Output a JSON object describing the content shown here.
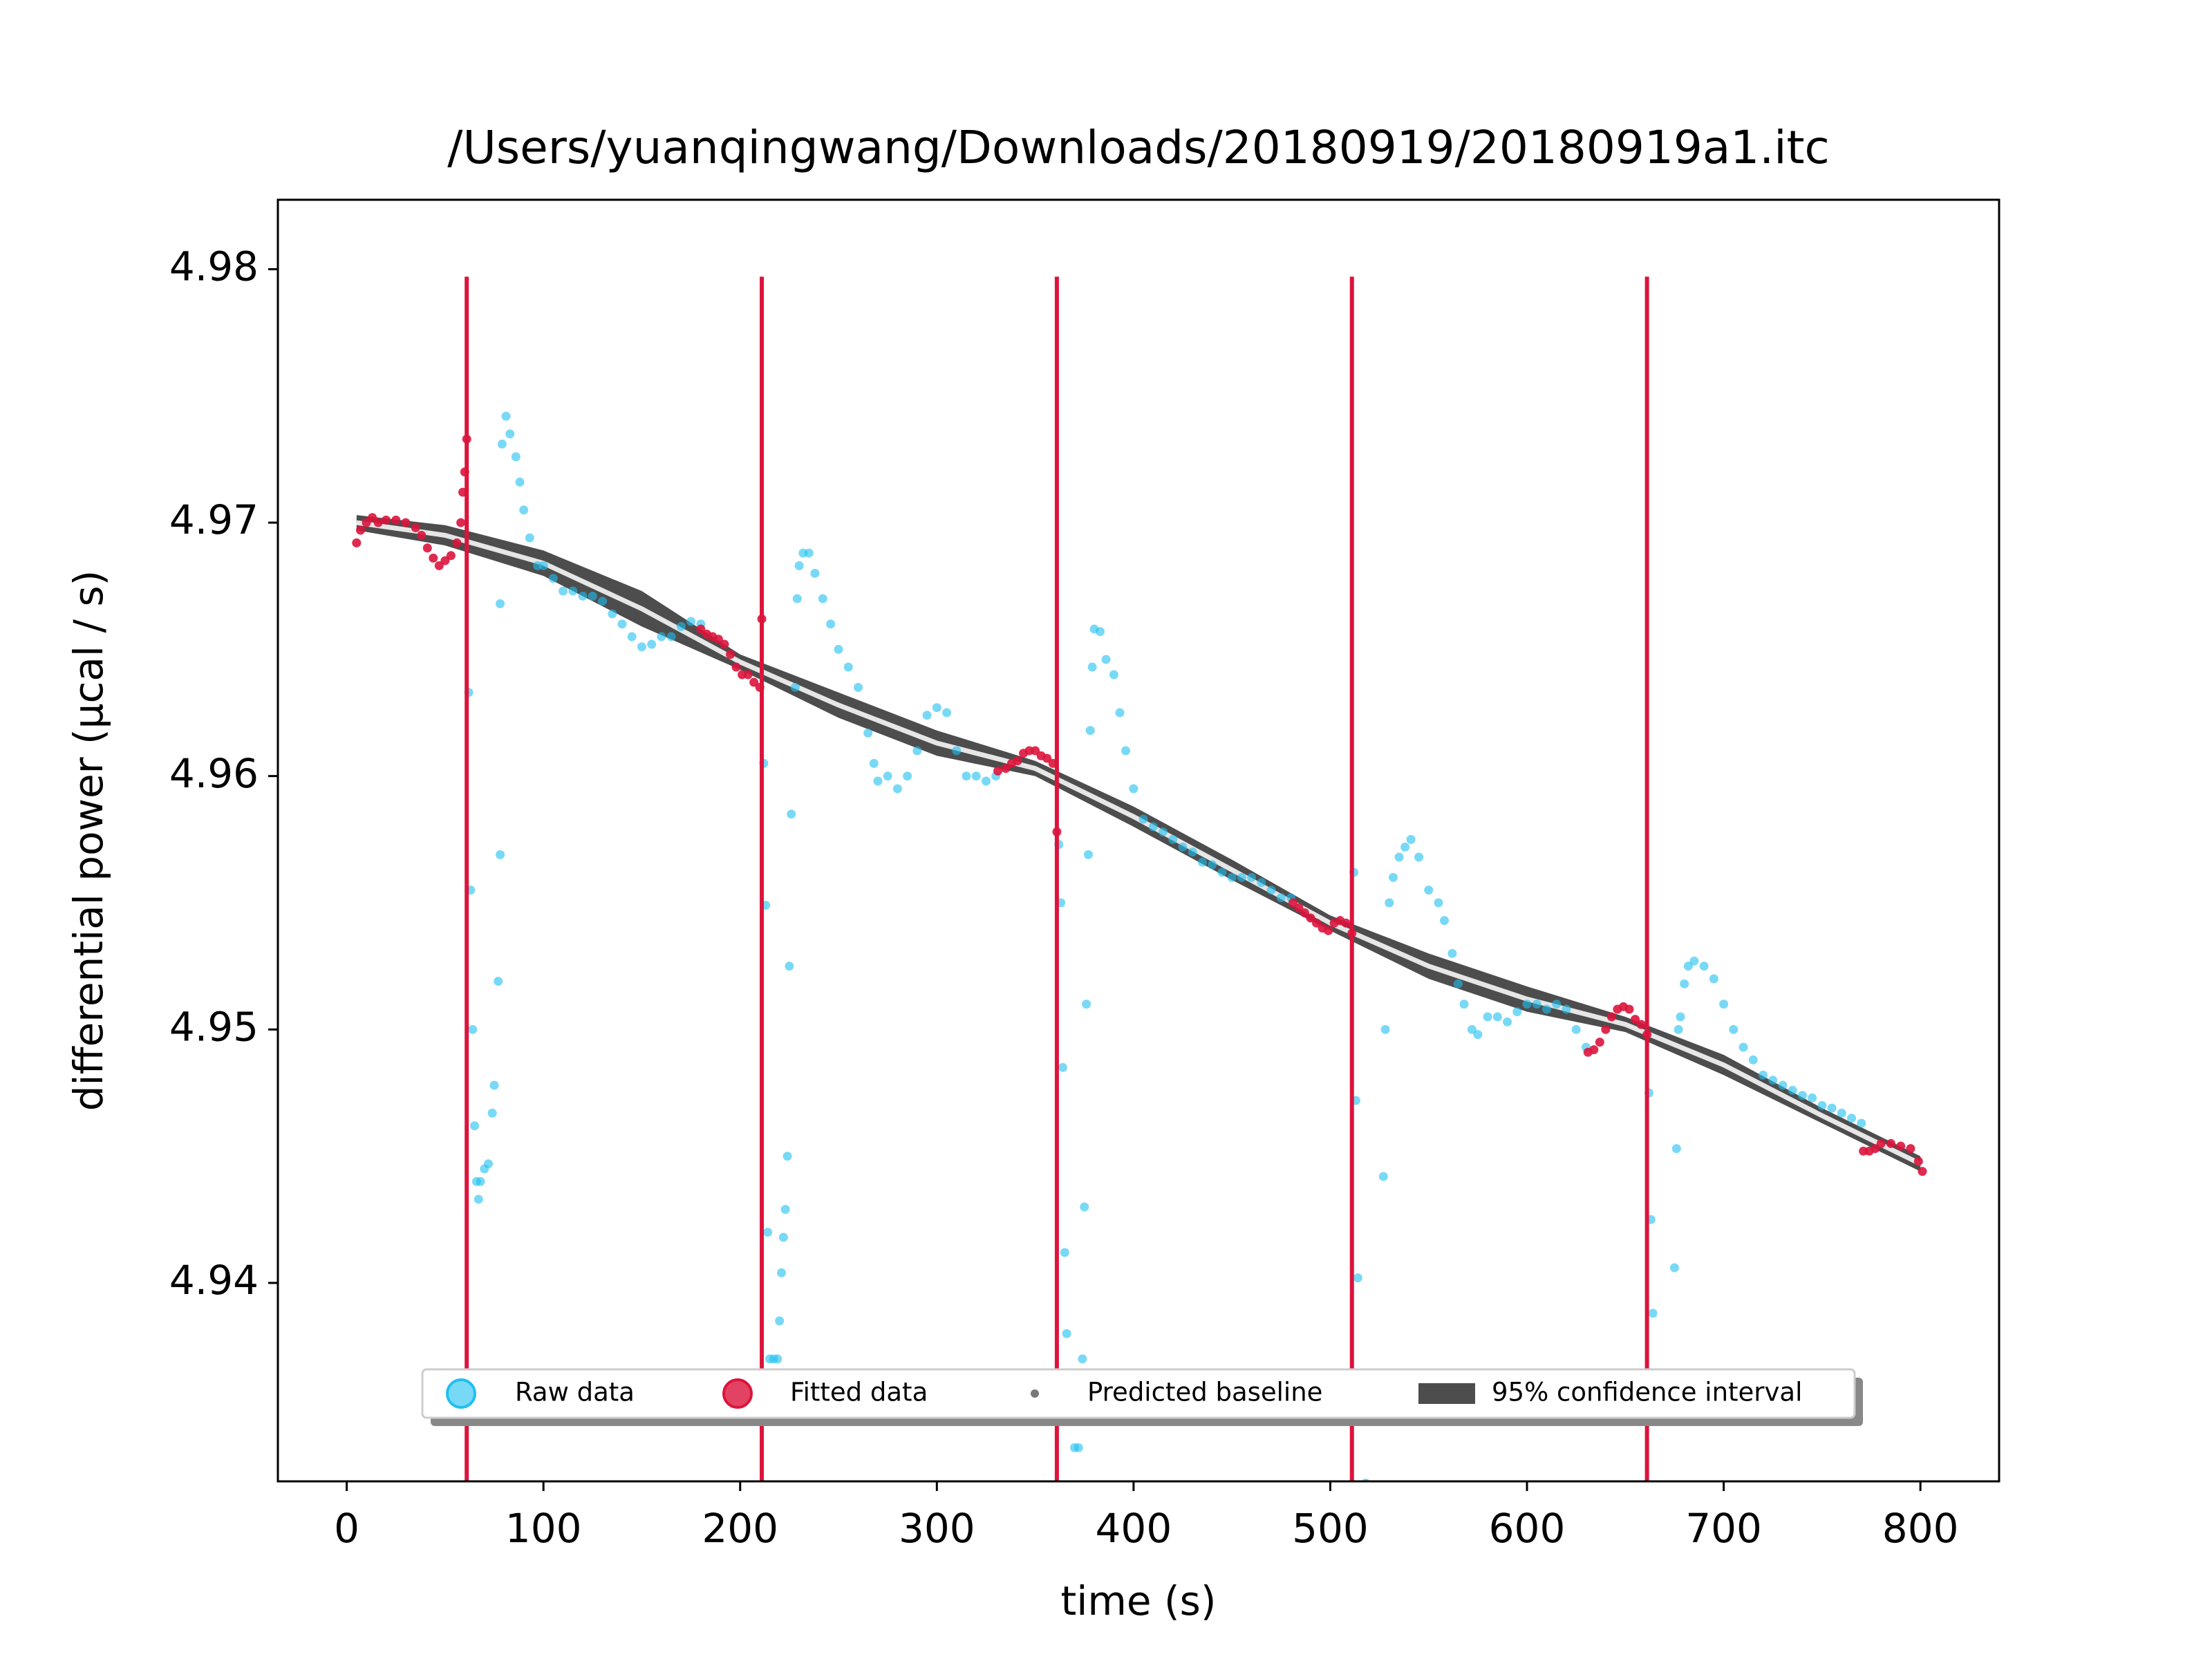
{
  "chart_data": {
    "type": "scatter",
    "title": "/Users/yuanqingwang/Downloads/20180919/20180919a1.itc",
    "x_label": "time (s)",
    "y_label": "differential power (μcal / s)",
    "xlim": [
      -35,
      840
    ],
    "ylim": [
      4.93217,
      4.98274
    ],
    "xticks": [
      0,
      100,
      200,
      300,
      400,
      500,
      600,
      700,
      800
    ],
    "yticks": [
      4.94,
      4.95,
      4.96,
      4.97,
      4.98
    ],
    "legend": "lower center",
    "injections": {
      "color": "#dc143c",
      "x": [
        61,
        211,
        361,
        511,
        661
      ]
    },
    "series": [
      {
        "name": "Raw data",
        "style": "points",
        "color": "#1ec0f0",
        "x": [
          62,
          63,
          64,
          65,
          66,
          67,
          68,
          70,
          72,
          74,
          75,
          77,
          78,
          78,
          79,
          81,
          83,
          86,
          88,
          90,
          93,
          97,
          100,
          105,
          110,
          115,
          120,
          125,
          130,
          135,
          140,
          145,
          150,
          155,
          160,
          165,
          170,
          175,
          180,
          212,
          213,
          214,
          215,
          217,
          219,
          220,
          221,
          222,
          223,
          224,
          225,
          226,
          228,
          229,
          230,
          232,
          235,
          238,
          242,
          246,
          250,
          255,
          260,
          265,
          268,
          270,
          275,
          280,
          285,
          290,
          295,
          300,
          305,
          310,
          315,
          320,
          325,
          330,
          362,
          363,
          364,
          365,
          366,
          368,
          370,
          372,
          374,
          375,
          376,
          377,
          378,
          379,
          380,
          383,
          386,
          390,
          393,
          396,
          400,
          405,
          410,
          415,
          420,
          425,
          430,
          435,
          440,
          445,
          450,
          455,
          460,
          465,
          470,
          475,
          480,
          512,
          513,
          514,
          518,
          526,
          527,
          528,
          530,
          532,
          535,
          538,
          541,
          545,
          550,
          555,
          558,
          562,
          565,
          568,
          572,
          575,
          580,
          585,
          590,
          595,
          600,
          605,
          610,
          615,
          620,
          625,
          630,
          662,
          663,
          664,
          665,
          675,
          676,
          677,
          678,
          680,
          682,
          685,
          690,
          695,
          700,
          705,
          710,
          715,
          720,
          725,
          730,
          735,
          740,
          745,
          750,
          755,
          760,
          765,
          770
        ],
        "values": [
          4.9633,
          4.9555,
          4.95,
          4.9462,
          4.944,
          4.9433,
          4.944,
          4.9445,
          4.9447,
          4.9467,
          4.9478,
          4.9519,
          4.9569,
          4.9668,
          4.9731,
          4.9742,
          4.9735,
          4.9726,
          4.9716,
          4.9705,
          4.9694,
          4.9683,
          4.9683,
          4.9678,
          4.9673,
          4.9673,
          4.9671,
          4.9671,
          4.9669,
          4.9664,
          4.966,
          4.9655,
          4.9651,
          4.9652,
          4.9655,
          4.9655,
          4.9659,
          4.9661,
          4.966,
          4.9605,
          4.9549,
          4.942,
          4.937,
          4.937,
          4.937,
          4.9385,
          4.9404,
          4.9418,
          4.9429,
          4.945,
          4.9525,
          4.9585,
          4.9635,
          4.967,
          4.9683,
          4.9688,
          4.9688,
          4.968,
          4.967,
          4.966,
          4.965,
          4.9643,
          4.9635,
          4.9617,
          4.9605,
          4.9598,
          4.96,
          4.9595,
          4.96,
          4.961,
          4.9624,
          4.9627,
          4.9625,
          4.961,
          4.96,
          4.96,
          4.9598,
          4.96,
          4.9573,
          4.955,
          4.9485,
          4.9412,
          4.938,
          4.9363,
          4.9335,
          4.9335,
          4.937,
          4.943,
          4.951,
          4.9569,
          4.9618,
          4.9643,
          4.9658,
          4.9657,
          4.9646,
          4.964,
          4.9625,
          4.961,
          4.9595,
          4.9583,
          4.958,
          4.9578,
          4.9575,
          4.9572,
          4.957,
          4.9566,
          4.9565,
          4.9562,
          4.956,
          4.956,
          4.956,
          4.9558,
          4.9555,
          4.9552,
          4.9552,
          4.9562,
          4.9472,
          4.9402,
          4.9321,
          4.932,
          4.9442,
          4.95,
          4.955,
          4.956,
          4.9568,
          4.9572,
          4.9575,
          4.9568,
          4.9555,
          4.955,
          4.9543,
          4.953,
          4.9518,
          4.951,
          4.95,
          4.9498,
          4.9505,
          4.9505,
          4.9503,
          4.9507,
          4.951,
          4.951,
          4.9508,
          4.951,
          4.9508,
          4.95,
          4.9493,
          4.9475,
          4.9425,
          4.9388,
          4.932,
          4.9406,
          4.9453,
          4.95,
          4.9505,
          4.9518,
          4.9525,
          4.9527,
          4.9525,
          4.952,
          4.951,
          4.95,
          4.9493,
          4.9488,
          4.9482,
          4.948,
          4.9478,
          4.9476,
          4.9474,
          4.9473,
          4.947,
          4.9469,
          4.9467,
          4.9465,
          4.9463
        ]
      },
      {
        "name": "Fitted data",
        "style": "points",
        "color": "#dc143c",
        "x": [
          5,
          7,
          10,
          13,
          16,
          20,
          25,
          30,
          35,
          38,
          41,
          44,
          47,
          50,
          53,
          56,
          58,
          59,
          60,
          61,
          180,
          183,
          186,
          189,
          192,
          195,
          198,
          201,
          204,
          207,
          210,
          211,
          331,
          335,
          338,
          341,
          344,
          347,
          350,
          353,
          356,
          359,
          361,
          481,
          484,
          487,
          490,
          493,
          496,
          499,
          502,
          505,
          508,
          511,
          631,
          634,
          637,
          640,
          643,
          646,
          649,
          652,
          655,
          658,
          661,
          771,
          774,
          777,
          780,
          785,
          790,
          795,
          799,
          801
        ],
        "values": [
          4.9692,
          4.9697,
          4.97,
          4.9702,
          4.97,
          4.9701,
          4.9701,
          4.97,
          4.9698,
          4.9695,
          4.969,
          4.9686,
          4.9683,
          4.9685,
          4.9687,
          4.9692,
          4.97,
          4.9712,
          4.972,
          4.9733,
          4.9658,
          4.9656,
          4.9655,
          4.9654,
          4.9652,
          4.9648,
          4.9643,
          4.964,
          4.964,
          4.9637,
          4.9635,
          4.9662,
          4.9602,
          4.9603,
          4.9605,
          4.9606,
          4.9609,
          4.961,
          4.961,
          4.9608,
          4.9607,
          4.9605,
          4.9578,
          4.955,
          4.9548,
          4.9546,
          4.9544,
          4.9542,
          4.954,
          4.9539,
          4.9542,
          4.9543,
          4.9542,
          4.9538,
          4.9491,
          4.9492,
          4.9495,
          4.95,
          4.9505,
          4.9508,
          4.9509,
          4.9508,
          4.9504,
          4.9502,
          4.9498,
          4.9452,
          4.9452,
          4.9453,
          4.9455,
          4.9455,
          4.9454,
          4.9453,
          4.9448,
          4.9444
        ]
      },
      {
        "name": "95% confidence interval",
        "style": "band",
        "color": "#3a3a3a",
        "x": [
          5,
          50,
          100,
          150,
          200,
          250,
          300,
          350,
          400,
          450,
          500,
          550,
          600,
          650,
          700,
          750,
          800
        ],
        "upper": [
          4.9703,
          4.9699,
          4.9689,
          4.9673,
          4.9648,
          4.9633,
          4.9618,
          4.9606,
          4.9588,
          4.9567,
          4.9545,
          4.953,
          4.9517,
          4.9505,
          4.949,
          4.9469,
          4.945
        ],
        "lower": [
          4.9697,
          4.9691,
          4.9679,
          4.9659,
          4.9642,
          4.9623,
          4.9608,
          4.96,
          4.958,
          4.9559,
          4.9539,
          4.952,
          4.9507,
          4.9499,
          4.9482,
          4.9463,
          4.9444
        ]
      },
      {
        "name": "Predicted baseline",
        "style": "line",
        "color": "#e6e6e6",
        "x": [
          5,
          50,
          100,
          150,
          200,
          250,
          300,
          350,
          400,
          450,
          500,
          550,
          600,
          650,
          700,
          750,
          800
        ],
        "values": [
          4.97,
          4.9695,
          4.9684,
          4.9666,
          4.9645,
          4.9628,
          4.9613,
          4.9603,
          4.9584,
          4.9563,
          4.9542,
          4.9525,
          4.9512,
          4.9502,
          4.9486,
          4.9466,
          4.9447
        ]
      }
    ]
  }
}
